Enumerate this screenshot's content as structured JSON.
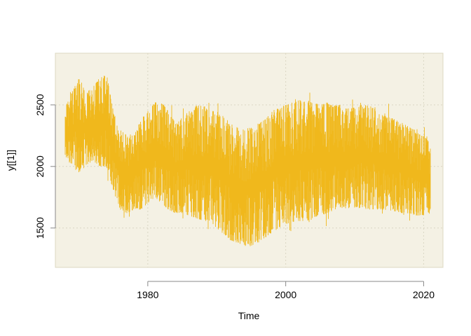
{
  "chart_data": {
    "type": "line",
    "title": "",
    "xlabel": "Time",
    "ylabel": "y[[1]]",
    "xlim": [
      1966.6,
      2022.8
    ],
    "ylim": [
      1180,
      2920
    ],
    "x_ticks": [
      1980,
      2000,
      2020
    ],
    "x_tick_labels": [
      "1980",
      "2000",
      "2020"
    ],
    "y_ticks": [
      1500,
      2000,
      2500
    ],
    "y_tick_labels": [
      "1500",
      "2000",
      "2500"
    ],
    "grid": true,
    "legend": "none",
    "colors": {
      "series": "#F0B81C",
      "panel_background": "#F4F1E4",
      "panel_border": "#DCD8C2",
      "grid": "#DAD6C4",
      "axis": "#888888"
    },
    "series": [
      {
        "x_start": 1968.0,
        "x_end": 2021.0,
        "x": [
          1968,
          1969,
          1970,
          1971,
          1972,
          1973,
          1974,
          1975,
          1976,
          1977,
          1978,
          1979,
          1980,
          1981,
          1982,
          1983,
          1984,
          1985,
          1986,
          1987,
          1988,
          1989,
          1990,
          1991,
          1992,
          1993,
          1994,
          1995,
          1996,
          1997,
          1998,
          1999,
          2000,
          2001,
          2002,
          2003,
          2004,
          2005,
          2006,
          2007,
          2008,
          2009,
          2010,
          2011,
          2012,
          2013,
          2014,
          2015,
          2016,
          2017,
          2018,
          2019,
          2020,
          2021
        ],
        "upper": [
          2480,
          2600,
          2720,
          2600,
          2640,
          2720,
          2760,
          2450,
          2300,
          2250,
          2250,
          2380,
          2450,
          2520,
          2520,
          2450,
          2350,
          2400,
          2450,
          2500,
          2500,
          2450,
          2450,
          2420,
          2350,
          2320,
          2300,
          2320,
          2350,
          2380,
          2450,
          2480,
          2500,
          2520,
          2540,
          2530,
          2520,
          2500,
          2520,
          2500,
          2500,
          2480,
          2480,
          2500,
          2500,
          2480,
          2420,
          2400,
          2380,
          2350,
          2320,
          2280,
          2260,
          2180
        ],
        "lower": [
          2080,
          2000,
          1950,
          2000,
          2050,
          2000,
          2000,
          1800,
          1650,
          1620,
          1650,
          1650,
          1700,
          1750,
          1700,
          1650,
          1620,
          1620,
          1600,
          1580,
          1560,
          1550,
          1500,
          1450,
          1400,
          1380,
          1350,
          1350,
          1380,
          1420,
          1460,
          1500,
          1520,
          1550,
          1550,
          1560,
          1570,
          1600,
          1620,
          1640,
          1660,
          1660,
          1660,
          1660,
          1650,
          1650,
          1650,
          1640,
          1630,
          1620,
          1620,
          1600,
          1600,
          1620
        ],
        "peak_max": 2830,
        "trough_min": 1250
      }
    ]
  }
}
